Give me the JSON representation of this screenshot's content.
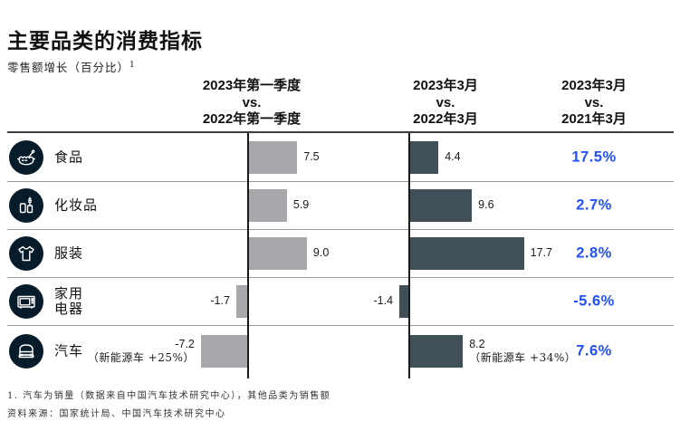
{
  "page": {
    "title": "主要品类的消费指标",
    "subtitle": "零售额增长（百分比）",
    "subtitle_sup": "1"
  },
  "columns": [
    {
      "line1": "2023年第一季度",
      "line2": "vs.",
      "line3": "2022年第一季度"
    },
    {
      "line1": "2023年3月",
      "line2": "vs.",
      "line3": "2022年3月"
    },
    {
      "line1": "2023年3月",
      "line2": "vs.",
      "line3": "2021年3月"
    }
  ],
  "rows": [
    {
      "label": "食品",
      "icon": "food-pot-icon",
      "q1_yoy": 7.5,
      "mar_yoy": 4.4,
      "mar_2yr": "17.5%"
    },
    {
      "label": "化妆品",
      "icon": "cosmetics-icon",
      "q1_yoy": 5.9,
      "mar_yoy": 9.6,
      "mar_2yr": "2.7%"
    },
    {
      "label": "服装",
      "icon": "tshirt-icon",
      "q1_yoy": 9.0,
      "mar_yoy": 17.7,
      "mar_2yr": "2.8%"
    },
    {
      "label": "家用电器",
      "label_line1": "家用",
      "label_line2": "电器",
      "icon": "microwave-icon",
      "q1_yoy": -1.7,
      "mar_yoy": -1.4,
      "mar_2yr": "-5.6%"
    },
    {
      "label": "汽车",
      "icon": "car-icon",
      "q1_yoy": -7.2,
      "q1_note": "（新能源车 +25%）",
      "mar_yoy": 8.2,
      "mar_note": "（新能源车 +34%）",
      "mar_2yr": "7.6%"
    }
  ],
  "footnotes": [
    "1. 汽车为销量（数据来自中国汽车技术研究中心），其他品类为销售额",
    "资料来源：国家统计局、中国汽车技术研究中心"
  ],
  "colors": {
    "bar_gray": "#a6a8ab",
    "bar_dark": "#414f58",
    "icon_bg": "#071c2b",
    "accent_blue": "#2251ff"
  },
  "chart_data": {
    "type": "bar",
    "orientation": "horizontal",
    "title": "主要品类的消费指标",
    "subtitle": "零售额增长（百分比）",
    "categories": [
      "食品",
      "化妆品",
      "服装",
      "家用电器",
      "汽车"
    ],
    "series": [
      {
        "name": "2023年第一季度 vs. 2022年第一季度",
        "values": [
          7.5,
          5.9,
          9.0,
          -1.7,
          -7.2
        ],
        "color": "#a6a8ab",
        "display": "bars"
      },
      {
        "name": "2023年3月 vs. 2022年3月",
        "values": [
          4.4,
          9.6,
          17.7,
          -1.4,
          8.2
        ],
        "color": "#414f58",
        "display": "bars"
      },
      {
        "name": "2023年3月 vs. 2021年3月",
        "values": [
          17.5,
          2.7,
          2.8,
          -5.6,
          7.6
        ],
        "color": "#2251ff",
        "display": "text-percent"
      }
    ],
    "annotations": [
      {
        "category": "汽车",
        "series": "2023年第一季度 vs. 2022年第一季度",
        "text": "（新能源车 +25%）"
      },
      {
        "category": "汽车",
        "series": "2023年3月 vs. 2022年3月",
        "text": "（新能源车 +34%）"
      }
    ],
    "axis_zero_lines": true,
    "grid": false,
    "legend_position": "column-headers"
  }
}
